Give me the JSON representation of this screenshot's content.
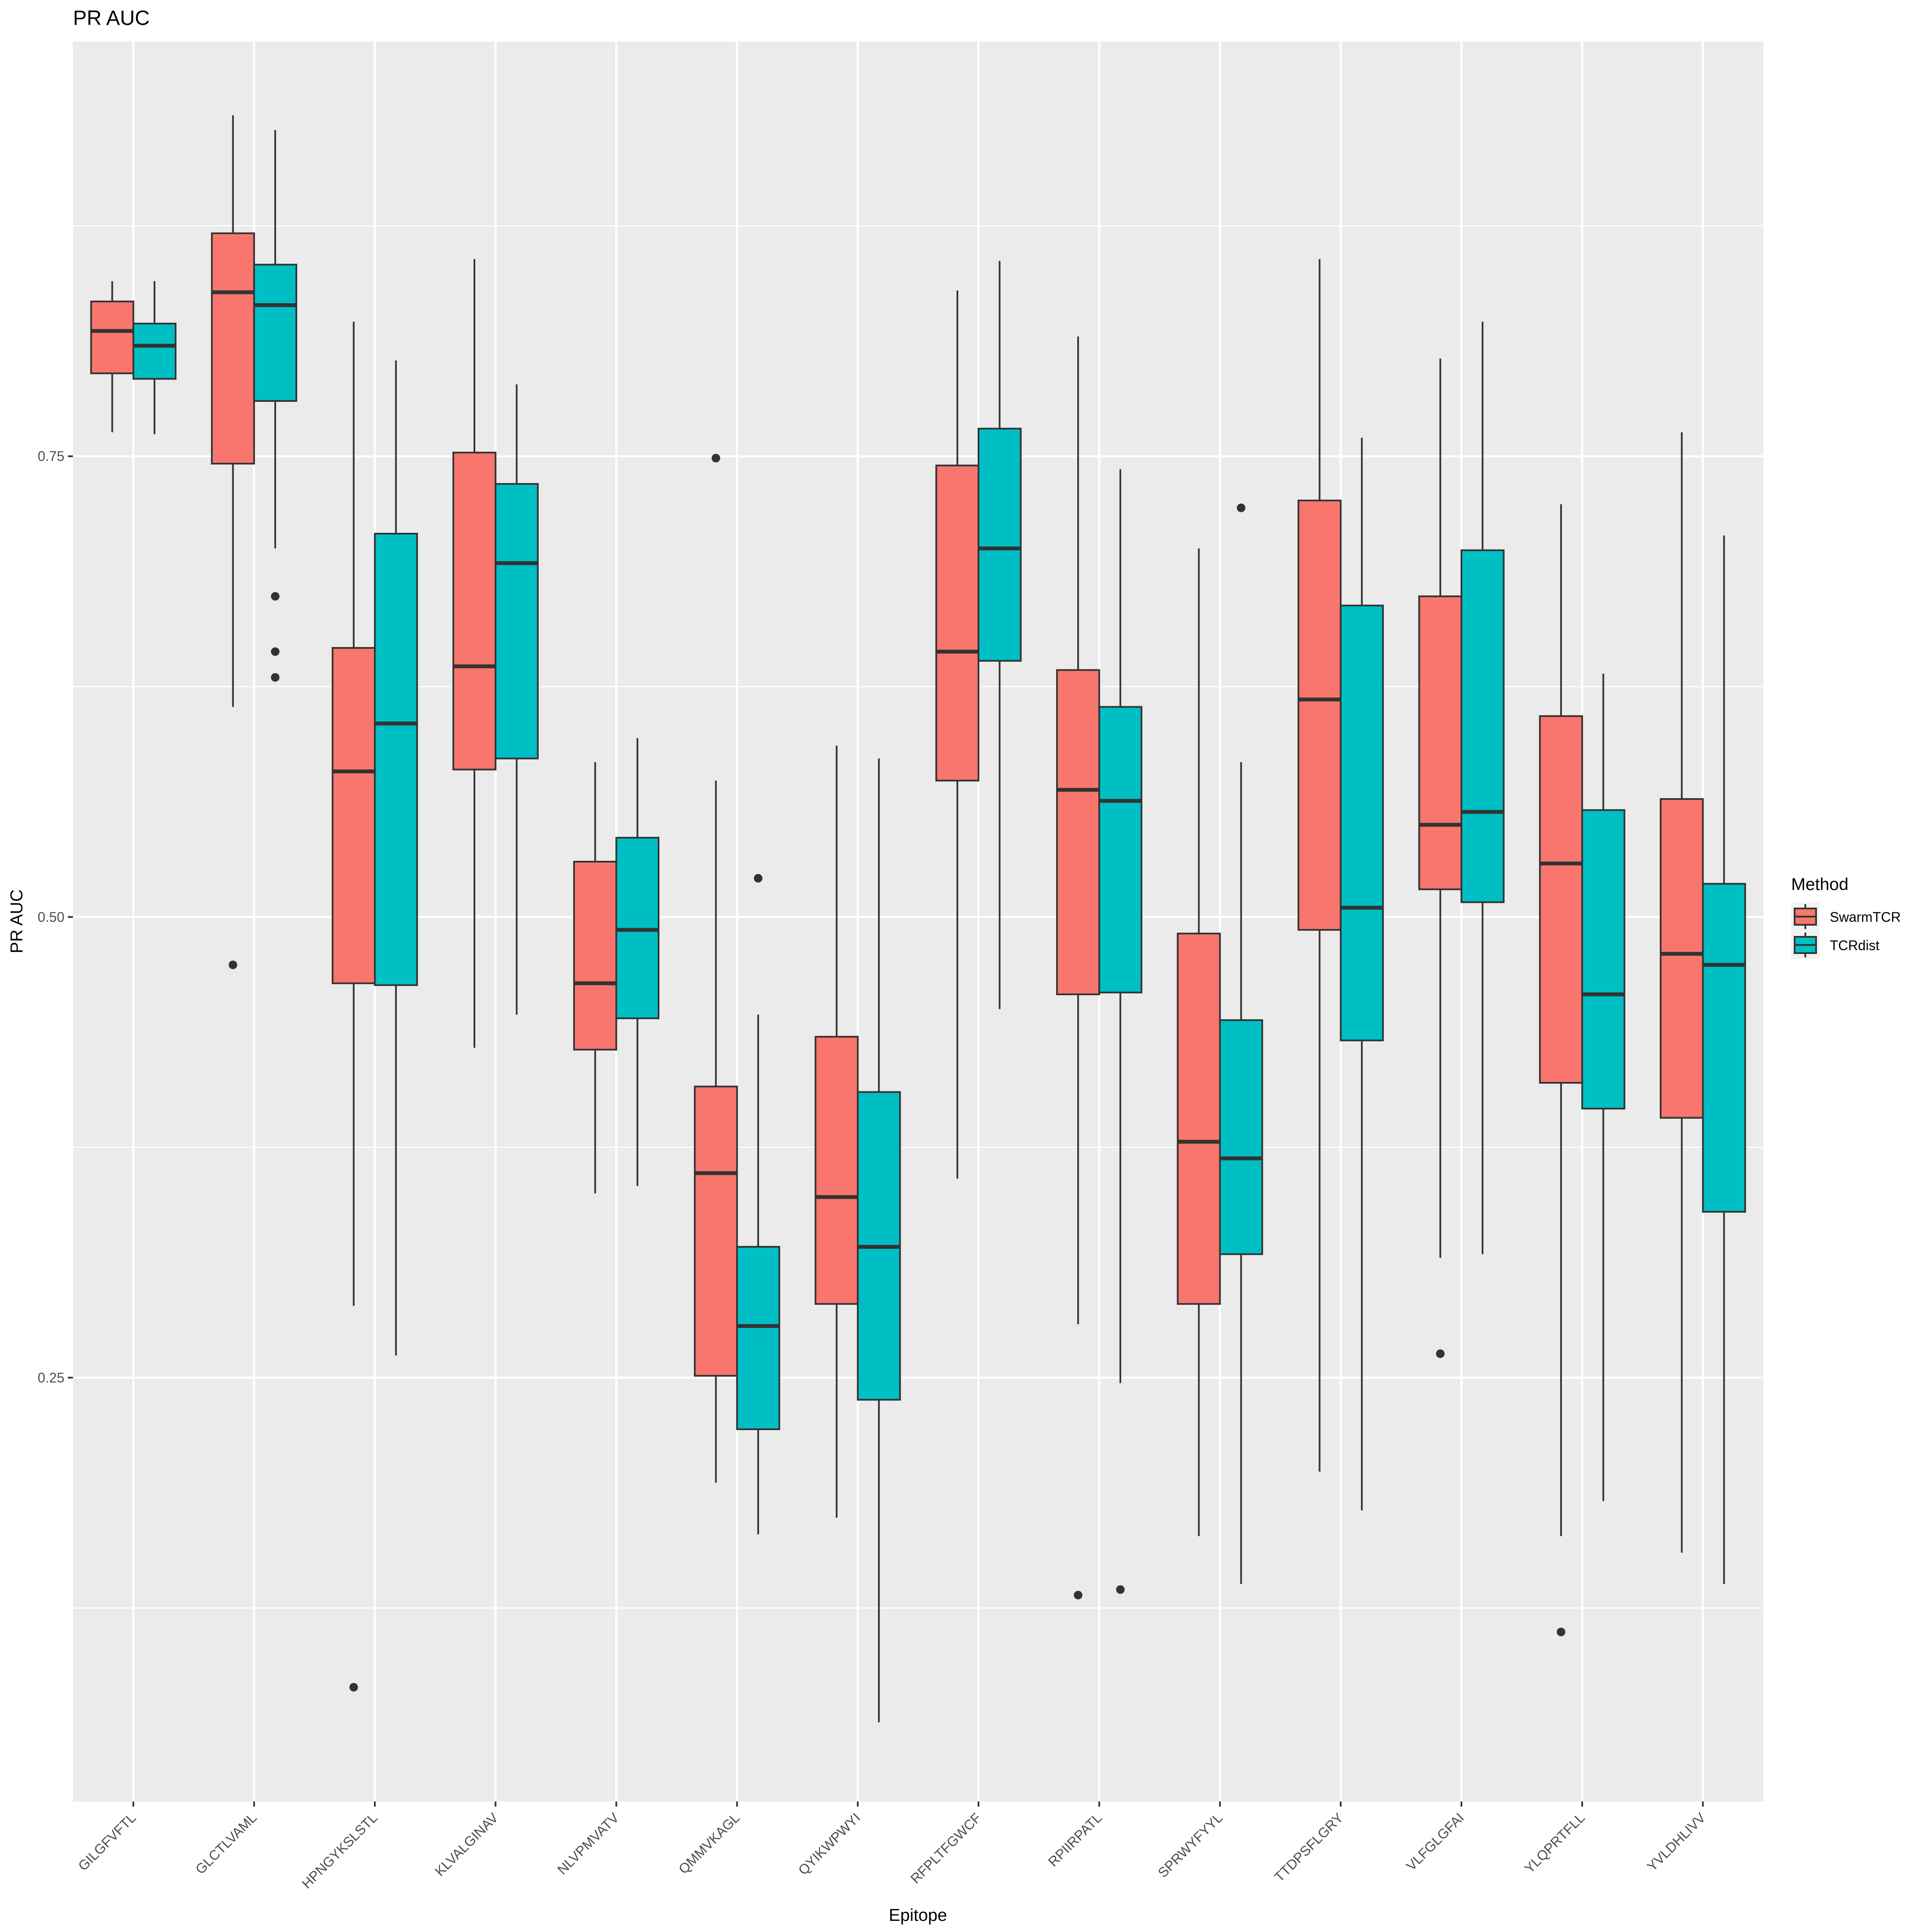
{
  "chart_data": {
    "type": "boxplot",
    "title": "PR AUC",
    "xlabel": "Epitope",
    "ylabel": "PR AUC",
    "ylim": [
      0.02,
      0.975
    ],
    "yticks": [
      0.25,
      0.5,
      0.75
    ],
    "ytick_labels": [
      "0.25",
      "0.50",
      "0.75"
    ],
    "grid": true,
    "legend": {
      "title": "Method",
      "position": "right",
      "entries": [
        {
          "name": "SwarmTCR",
          "color": "#F8766D"
        },
        {
          "name": "TCRdist",
          "color": "#00BFC4"
        }
      ]
    },
    "categories": [
      "GILGFVFTL",
      "GLCTLVAML",
      "HPNGYKSLSTL",
      "KLVALGINAV",
      "NLVPMVATV",
      "QMMVKAGL",
      "QYIKWPWYI",
      "RFPLTFGWCF",
      "RPIIRPATL",
      "SPRWYFYYL",
      "TTDPSFLGRY",
      "VLFGLGFAI",
      "YLQPRTFLL",
      "YVLDHLIVV"
    ],
    "series": [
      {
        "name": "SwarmTCR",
        "color": "#F8766D",
        "boxes": [
          {
            "min": 0.763,
            "q1": 0.795,
            "median": 0.818,
            "q3": 0.834,
            "max": 0.845,
            "outliers": []
          },
          {
            "min": 0.614,
            "q1": 0.746,
            "median": 0.839,
            "q3": 0.871,
            "max": 0.935,
            "outliers": [
              0.474
            ]
          },
          {
            "min": 0.289,
            "q1": 0.464,
            "median": 0.579,
            "q3": 0.646,
            "max": 0.823,
            "outliers": [
              0.082
            ]
          },
          {
            "min": 0.429,
            "q1": 0.58,
            "median": 0.636,
            "q3": 0.752,
            "max": 0.857,
            "outliers": []
          },
          {
            "min": 0.35,
            "q1": 0.428,
            "median": 0.464,
            "q3": 0.53,
            "max": 0.584,
            "outliers": []
          },
          {
            "min": 0.193,
            "q1": 0.251,
            "median": 0.361,
            "q3": 0.408,
            "max": 0.574,
            "outliers": [
              0.749
            ]
          },
          {
            "min": 0.174,
            "q1": 0.29,
            "median": 0.348,
            "q3": 0.435,
            "max": 0.593,
            "outliers": []
          },
          {
            "min": 0.358,
            "q1": 0.574,
            "median": 0.644,
            "q3": 0.745,
            "max": 0.84,
            "outliers": []
          },
          {
            "min": 0.279,
            "q1": 0.458,
            "median": 0.569,
            "q3": 0.634,
            "max": 0.815,
            "outliers": [
              0.132
            ]
          },
          {
            "min": 0.164,
            "q1": 0.29,
            "median": 0.378,
            "q3": 0.491,
            "max": 0.7,
            "outliers": []
          },
          {
            "min": 0.199,
            "q1": 0.493,
            "median": 0.618,
            "q3": 0.726,
            "max": 0.857,
            "outliers": []
          },
          {
            "min": 0.315,
            "q1": 0.515,
            "median": 0.55,
            "q3": 0.674,
            "max": 0.803,
            "outliers": [
              0.263
            ]
          },
          {
            "min": 0.164,
            "q1": 0.41,
            "median": 0.529,
            "q3": 0.609,
            "max": 0.724,
            "outliers": [
              0.112
            ]
          },
          {
            "min": 0.155,
            "q1": 0.391,
            "median": 0.48,
            "q3": 0.564,
            "max": 0.763,
            "outliers": []
          }
        ]
      },
      {
        "name": "TCRdist",
        "color": "#00BFC4",
        "boxes": [
          {
            "min": 0.762,
            "q1": 0.792,
            "median": 0.81,
            "q3": 0.822,
            "max": 0.845,
            "outliers": []
          },
          {
            "min": 0.7,
            "q1": 0.78,
            "median": 0.832,
            "q3": 0.854,
            "max": 0.927,
            "outliers": [
              0.674,
              0.644,
              0.63
            ]
          },
          {
            "min": 0.262,
            "q1": 0.463,
            "median": 0.605,
            "q3": 0.708,
            "max": 0.802,
            "outliers": []
          },
          {
            "min": 0.447,
            "q1": 0.586,
            "median": 0.692,
            "q3": 0.735,
            "max": 0.789,
            "outliers": []
          },
          {
            "min": 0.354,
            "q1": 0.445,
            "median": 0.493,
            "q3": 0.543,
            "max": 0.597,
            "outliers": []
          },
          {
            "min": 0.165,
            "q1": 0.222,
            "median": 0.278,
            "q3": 0.321,
            "max": 0.447,
            "outliers": [
              0.521
            ]
          },
          {
            "min": 0.063,
            "q1": 0.238,
            "median": 0.321,
            "q3": 0.405,
            "max": 0.586,
            "outliers": []
          },
          {
            "min": 0.45,
            "q1": 0.639,
            "median": 0.7,
            "q3": 0.765,
            "max": 0.856,
            "outliers": []
          },
          {
            "min": 0.247,
            "q1": 0.459,
            "median": 0.563,
            "q3": 0.614,
            "max": 0.743,
            "outliers": [
              0.135
            ]
          },
          {
            "min": 0.138,
            "q1": 0.317,
            "median": 0.369,
            "q3": 0.444,
            "max": 0.584,
            "outliers": [
              0.722
            ]
          },
          {
            "min": 0.178,
            "q1": 0.433,
            "median": 0.505,
            "q3": 0.669,
            "max": 0.76,
            "outliers": []
          },
          {
            "min": 0.317,
            "q1": 0.508,
            "median": 0.557,
            "q3": 0.699,
            "max": 0.823,
            "outliers": []
          },
          {
            "min": 0.183,
            "q1": 0.396,
            "median": 0.458,
            "q3": 0.558,
            "max": 0.632,
            "outliers": []
          },
          {
            "min": 0.138,
            "q1": 0.34,
            "median": 0.474,
            "q3": 0.518,
            "max": 0.707,
            "outliers": []
          }
        ]
      }
    ]
  }
}
